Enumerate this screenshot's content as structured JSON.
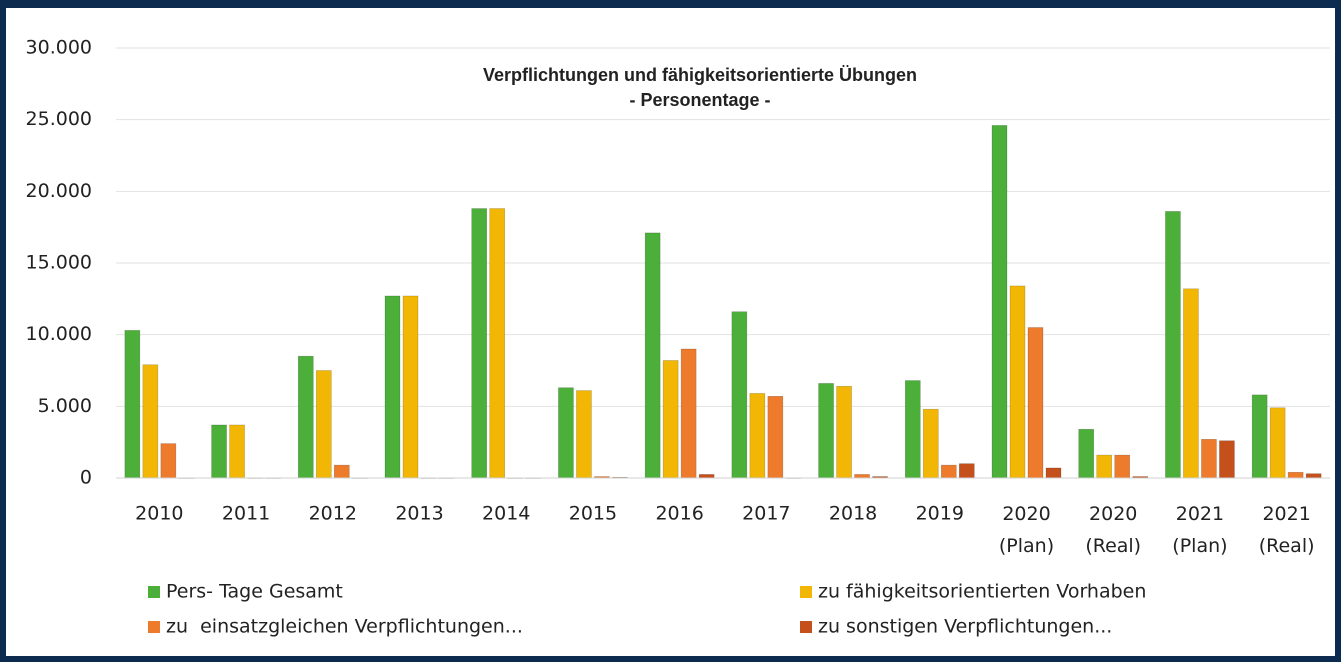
{
  "chart_data": {
    "type": "bar",
    "title": "Verpflichtungen und fähigkeitsorientierte Übungen",
    "subtitle": "- Personentage -",
    "categories": [
      "2010",
      "2011",
      "2012",
      "2013",
      "2014",
      "2015",
      "2016",
      "2017",
      "2018",
      "2019",
      "2020 (Plan)",
      "2020 (Real)",
      "2021 (Plan)",
      "2021 (Real)"
    ],
    "series": [
      {
        "name": "Pers- Tage Gesamt",
        "color": "#4caf3a",
        "values": [
          10300,
          3700,
          8500,
          12700,
          18800,
          6300,
          17100,
          11600,
          6600,
          6800,
          24600,
          3400,
          18600,
          5800
        ]
      },
      {
        "name": "zu fähigkeitsorientierten Vorhaben",
        "color": "#f2b705",
        "values": [
          7900,
          3700,
          7500,
          12700,
          18800,
          6100,
          8200,
          5900,
          6400,
          4800,
          13400,
          1600,
          13200,
          4900
        ]
      },
      {
        "name": "zu  einsatzgleichen Verpflichtungen...",
        "color": "#ee7a2b",
        "values": [
          2400,
          0,
          900,
          0,
          0,
          100,
          9000,
          5700,
          250,
          900,
          10500,
          1600,
          2700,
          400
        ]
      },
      {
        "name": "zu sonstigen Verpflichtungen...",
        "color": "#c4501c",
        "values": [
          0,
          0,
          0,
          0,
          0,
          50,
          250,
          0,
          100,
          1000,
          700,
          100,
          2600,
          300
        ]
      }
    ],
    "ylim": [
      0,
      30000
    ],
    "yticks": [
      0,
      {
        "value": 5000,
        "label": "5.000"
      },
      {
        "value": 10000,
        "label": "10.000"
      },
      {
        "value": 15000,
        "label": "15.000"
      },
      {
        "value": 20000,
        "label": "20.000"
      },
      {
        "value": 25000,
        "label": "25.000"
      },
      {
        "value": 30000,
        "label": "30.000"
      }
    ],
    "grid": true,
    "legend": "bottom"
  }
}
